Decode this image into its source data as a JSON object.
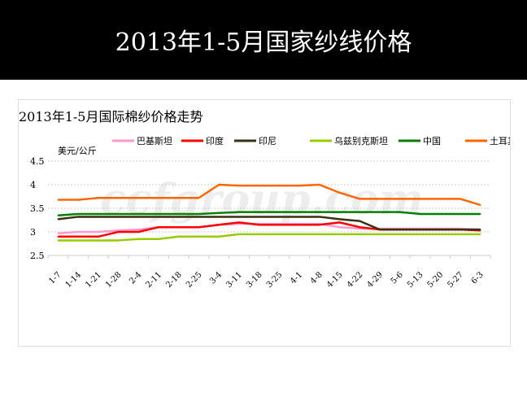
{
  "slide": {
    "title": "2013年1-5月国家纱线价格"
  },
  "watermark": "ccfgroup.com",
  "chart_data": {
    "type": "line",
    "title": "2013年1-5月国际棉纱价格走势",
    "ylabel": "美元/公斤",
    "ylim": [
      2.5,
      4.5
    ],
    "yticks": [
      "4.5",
      "4",
      "3.5",
      "3",
      "2.5"
    ],
    "grid": true,
    "legend": "top",
    "categories": [
      "1-7",
      "1-14",
      "1-21",
      "1-28",
      "2-4",
      "2-11",
      "2-18",
      "2-25",
      "3-4",
      "3-11",
      "3-18",
      "3-25",
      "4-1",
      "4-8",
      "4-15",
      "4-22",
      "4-29",
      "5-6",
      "5-13",
      "5-20",
      "5-27",
      "6-3"
    ],
    "series": [
      {
        "name": "巴基斯坦",
        "color": "#ff99cc",
        "values": [
          2.97,
          3.0,
          3.0,
          3.03,
          3.05,
          3.1,
          3.1,
          3.1,
          3.15,
          3.17,
          3.17,
          3.17,
          3.17,
          3.17,
          3.1,
          3.07,
          3.07,
          3.07,
          3.07,
          3.07,
          3.07,
          3.05
        ]
      },
      {
        "name": "印度",
        "color": "#ff0000",
        "values": [
          2.9,
          2.9,
          2.9,
          3.0,
          3.0,
          3.1,
          3.1,
          3.1,
          3.15,
          3.2,
          3.15,
          3.15,
          3.15,
          3.15,
          3.2,
          3.1,
          3.05,
          3.05,
          3.05,
          3.05,
          3.05,
          3.03
        ]
      },
      {
        "name": "印尼",
        "color": "#3a3010",
        "values": [
          3.27,
          3.32,
          3.32,
          3.32,
          3.32,
          3.32,
          3.32,
          3.32,
          3.32,
          3.32,
          3.32,
          3.32,
          3.32,
          3.32,
          3.27,
          3.23,
          3.05,
          3.05,
          3.05,
          3.05,
          3.05,
          3.05
        ]
      },
      {
        "name": "乌兹别克斯坦",
        "color": "#99cc00",
        "values": [
          2.82,
          2.82,
          2.82,
          2.82,
          2.85,
          2.85,
          2.9,
          2.9,
          2.9,
          2.95,
          2.95,
          2.95,
          2.95,
          2.95,
          2.95,
          2.95,
          2.95,
          2.95,
          2.95,
          2.95,
          2.95,
          2.95
        ]
      },
      {
        "name": "中国",
        "color": "#008000",
        "values": [
          3.35,
          3.38,
          3.38,
          3.38,
          3.38,
          3.38,
          3.38,
          3.38,
          3.4,
          3.42,
          3.42,
          3.42,
          3.42,
          3.42,
          3.42,
          3.42,
          3.42,
          3.42,
          3.38,
          3.38,
          3.38,
          3.38
        ]
      },
      {
        "name": "土耳其",
        "color": "#ff6600",
        "values": [
          3.68,
          3.68,
          3.72,
          3.72,
          3.72,
          3.72,
          3.72,
          3.72,
          4.0,
          3.98,
          3.98,
          3.98,
          3.98,
          4.0,
          3.83,
          3.7,
          3.7,
          3.7,
          3.7,
          3.7,
          3.7,
          3.57
        ]
      }
    ]
  }
}
